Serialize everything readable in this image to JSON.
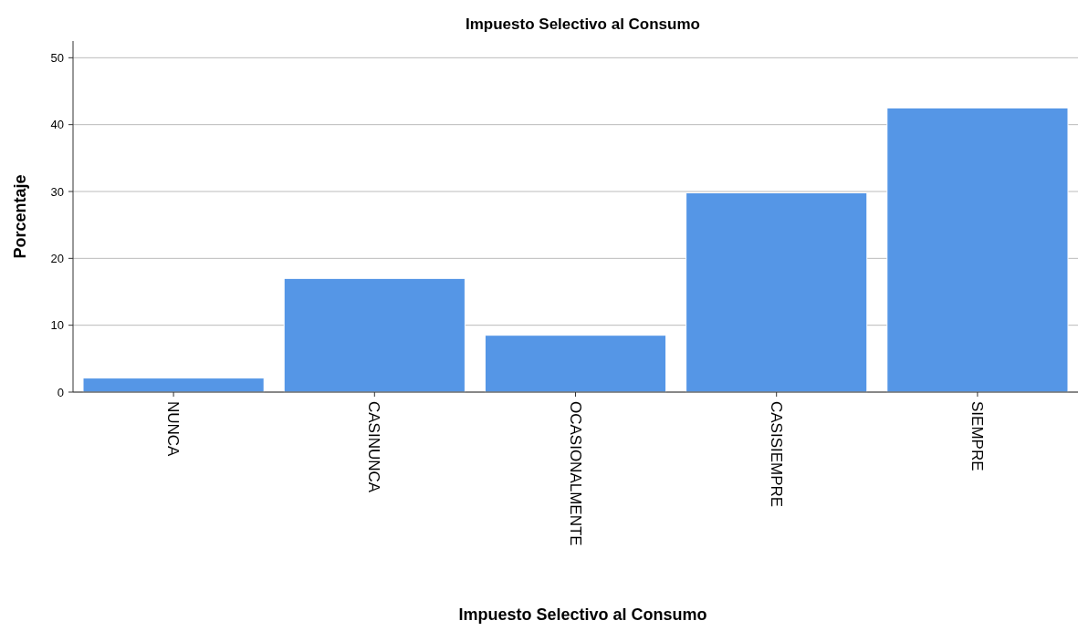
{
  "chart_data": {
    "type": "bar",
    "title": "Impuesto Selectivo al Consumo",
    "xlabel": "Impuesto Selectivo al Consumo",
    "ylabel": "Porcentaje",
    "categories": [
      "NUNCA",
      "CASINUNCA",
      "OCASIONALMENTE",
      "CASISIEMPRE",
      "SIEMPRE"
    ],
    "values": [
      2.1,
      17.0,
      8.5,
      29.8,
      42.5
    ],
    "color": "#5596e6",
    "ylim": [
      0,
      52.5
    ],
    "yticks": [
      0,
      10,
      20,
      30,
      40,
      50
    ],
    "grid": "y"
  }
}
